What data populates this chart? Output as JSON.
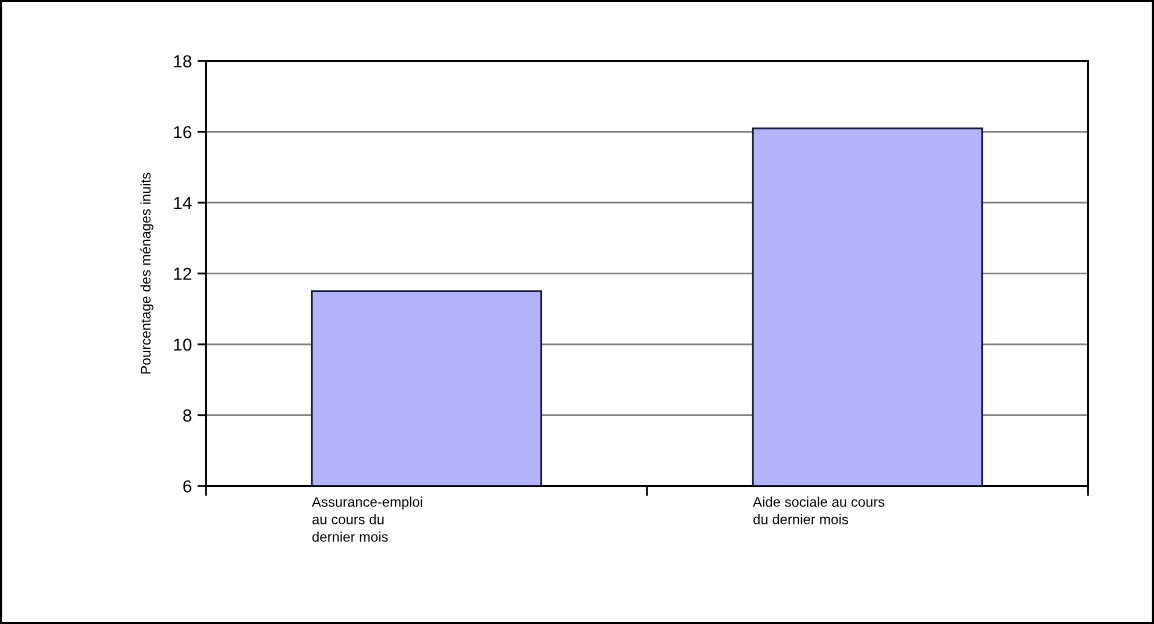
{
  "chart_data": {
    "type": "bar",
    "ylabel": "Pourcentage des ménages inuits",
    "categories": [
      "Assurance-emploi\nau cours du\ndernier mois",
      "Aide sociale au cours\ndu dernier mois"
    ],
    "values": [
      11.5,
      16.1
    ],
    "color": "#b3b3fa",
    "ylim": [
      6,
      18
    ],
    "yticks": [
      6,
      8,
      10,
      12,
      14,
      16,
      18
    ],
    "grid": "y"
  }
}
